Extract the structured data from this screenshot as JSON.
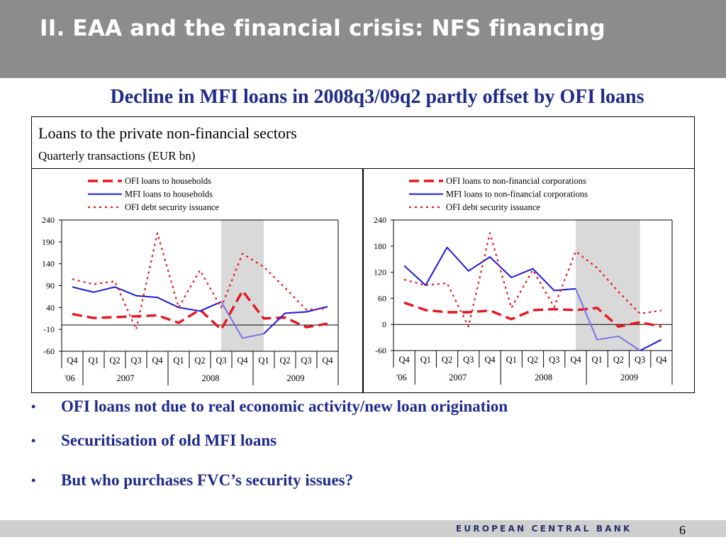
{
  "header": {
    "title": "II. EAA and the financial crisis: NFS financing"
  },
  "subtitle": "Decline in MFI loans in 2008q3/09q2 partly offset by OFI loans",
  "panel": {
    "title": "Loans to the private non-financial sectors",
    "subtitle": "Quarterly transactions (EUR bn)"
  },
  "chart_data": [
    {
      "type": "line",
      "quarters": [
        "Q4",
        "Q1",
        "Q2",
        "Q3",
        "Q4",
        "Q1",
        "Q2",
        "Q3",
        "Q4",
        "Q1",
        "Q2",
        "Q3",
        "Q4"
      ],
      "years": [
        {
          "label": "'06",
          "span": 1
        },
        {
          "label": "2007",
          "span": 4
        },
        {
          "label": "2008",
          "span": 4
        },
        {
          "label": "2009",
          "span": 4
        }
      ],
      "yticks": [
        240,
        190,
        140,
        90,
        40,
        -10,
        -60
      ],
      "ylim": [
        -60,
        240
      ],
      "shaded_quarters": [
        7,
        9
      ],
      "series": [
        {
          "name": "OFI loans to households",
          "style": "dash",
          "color": "#e8141e",
          "values": [
            25,
            16,
            18,
            20,
            22,
            5,
            35,
            -10,
            78,
            15,
            17,
            -5,
            3
          ]
        },
        {
          "name": "MFI loans to households",
          "style": "solid",
          "color": "#1a1adc",
          "color_shaded": "#7a72e6",
          "values": [
            87,
            75,
            87,
            67,
            63,
            40,
            32,
            53,
            -30,
            -20,
            27,
            30,
            42
          ]
        },
        {
          "name": "OFI debt security  issuance",
          "style": "dot",
          "color": "#e8141e",
          "values": [
            105,
            93,
            100,
            -10,
            210,
            40,
            125,
            40,
            163,
            133,
            85,
            35,
            38
          ]
        }
      ]
    },
    {
      "type": "line",
      "quarters": [
        "Q4",
        "Q1",
        "Q2",
        "Q3",
        "Q4",
        "Q1",
        "Q2",
        "Q3",
        "Q4",
        "Q1",
        "Q2",
        "Q3",
        "Q4"
      ],
      "years": [
        {
          "label": "'06",
          "span": 1
        },
        {
          "label": "2007",
          "span": 4
        },
        {
          "label": "2008",
          "span": 4
        },
        {
          "label": "2009",
          "span": 4
        }
      ],
      "yticks": [
        240,
        180,
        120,
        60,
        0,
        -60
      ],
      "ylim": [
        -60,
        240
      ],
      "shaded_quarters": [
        8,
        11
      ],
      "series": [
        {
          "name": "OFI loans to non-financial corporations",
          "style": "dash",
          "color": "#e8141e",
          "values": [
            50,
            33,
            28,
            28,
            32,
            12,
            33,
            35,
            33,
            38,
            -5,
            5,
            -5
          ]
        },
        {
          "name": "MFI loans to non-financial corporations",
          "style": "solid",
          "color": "#1a1adc",
          "color_shaded": "#7a72e6",
          "values": [
            135,
            90,
            177,
            123,
            155,
            108,
            128,
            78,
            82,
            -35,
            -27,
            -60,
            -35
          ]
        },
        {
          "name": "OFI debt security  issuance",
          "style": "dot",
          "color": "#e8141e",
          "values": [
            103,
            90,
            95,
            -5,
            210,
            38,
            125,
            40,
            168,
            130,
            75,
            25,
            32
          ]
        }
      ]
    }
  ],
  "bullets": [
    "OFI loans not due to real economic activity/new loan origination",
    "Securitisation of old MFI loans",
    "But who purchases FVC’s security issues?"
  ],
  "footer": {
    "brand": "EUROPEAN CENTRAL BANK",
    "page": "6"
  }
}
